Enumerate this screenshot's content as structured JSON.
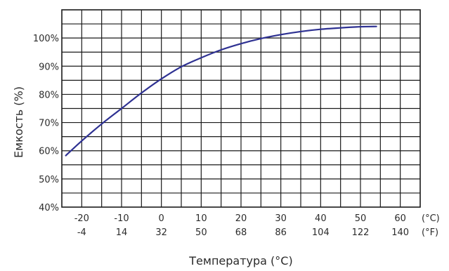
{
  "chart_data": {
    "type": "line",
    "title": "",
    "xlabel": "Температура (°C)",
    "ylabel": "Емкость (%)",
    "grid": true,
    "xlim": [
      -25,
      65
    ],
    "ylim": [
      40,
      110
    ],
    "x_ticks_c": [
      "-20",
      "-10",
      "0",
      "10",
      "20",
      "30",
      "40",
      "50",
      "60"
    ],
    "x_ticks_f": [
      "-4",
      "14",
      "32",
      "50",
      "68",
      "86",
      "104",
      "122",
      "140"
    ],
    "x_unit_c": "(°C)",
    "x_unit_f": "(°F)",
    "y_ticks": [
      {
        "value": 40,
        "label": "40%"
      },
      {
        "value": 50,
        "label": "50%"
      },
      {
        "value": 60,
        "label": "60%"
      },
      {
        "value": 70,
        "label": "70%"
      },
      {
        "value": 80,
        "label": "80%"
      },
      {
        "value": 90,
        "label": "90%"
      },
      {
        "value": 100,
        "label": "100%"
      }
    ],
    "series": [
      {
        "color": "#2e3192",
        "x": [
          -24,
          -20,
          -15,
          -10,
          -5,
          0,
          5,
          10,
          15,
          20,
          25,
          30,
          35,
          40,
          45,
          50,
          54
        ],
        "y": [
          58.3,
          63.5,
          69.5,
          75.0,
          80.5,
          85.5,
          89.8,
          93.0,
          95.8,
          98.0,
          99.8,
          101.2,
          102.3,
          103.1,
          103.6,
          104.0,
          104.1
        ]
      }
    ]
  }
}
